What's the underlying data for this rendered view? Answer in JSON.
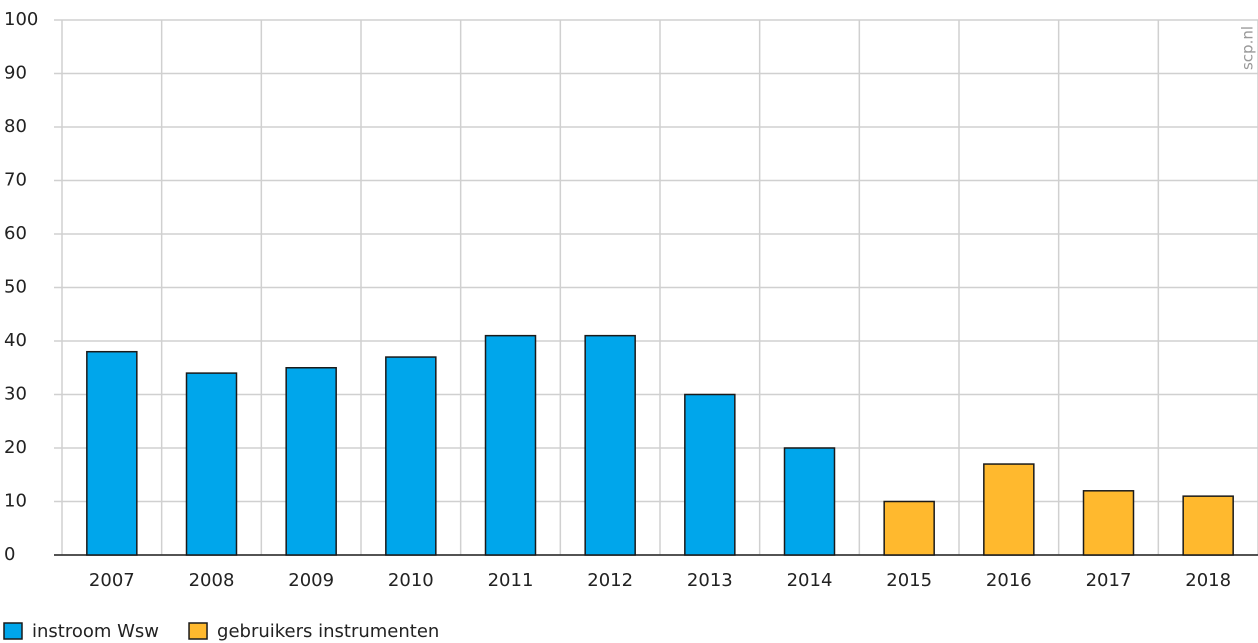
{
  "chart_data": {
    "type": "bar",
    "source": "scp.nl",
    "categories": [
      "2007",
      "2008",
      "2009",
      "2010",
      "2011",
      "2012",
      "2013",
      "2014",
      "2015",
      "2016",
      "2017",
      "2018"
    ],
    "series": [
      {
        "name": "instroom Wsw",
        "color": "#00a6eb",
        "values": [
          38,
          34,
          35,
          37,
          41,
          41,
          30,
          20,
          null,
          null,
          null,
          null
        ]
      },
      {
        "name": "gebruikers instrumenten",
        "color": "#ffb92e",
        "values": [
          null,
          null,
          null,
          null,
          null,
          null,
          null,
          null,
          10,
          17,
          12,
          11
        ]
      }
    ],
    "ylim": [
      0,
      100
    ],
    "yticks": [
      0,
      10,
      20,
      30,
      40,
      50,
      60,
      70,
      80,
      90,
      100
    ],
    "grid": true
  }
}
